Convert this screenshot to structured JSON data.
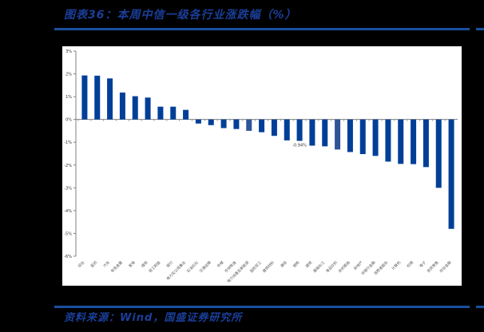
{
  "header": {
    "title": "图表36：本周中信一级各行业涨跌幅（%）"
  },
  "footer": {
    "source": "资料来源：Wind，国盛证券研究所"
  },
  "colors": {
    "bar": "#003f98",
    "bar_highlight": "#2f5597",
    "rule": "#1a4fa0",
    "title": "#1a3f9a"
  },
  "chart_data": {
    "type": "bar",
    "title": "本周中信一级各行业涨跌幅（%）",
    "xlabel": "",
    "ylabel": "",
    "ylim": [
      -6,
      3
    ],
    "yticks": [
      "3%",
      "2%",
      "1%",
      "0%",
      "-1%",
      "-2%",
      "-3%",
      "-4%",
      "-5%",
      "-6%"
    ],
    "grid": false,
    "legend": null,
    "categories": [
      "综合",
      "医药",
      "汽车",
      "有色金属",
      "家电",
      "煤炭",
      "轻工制造",
      "银行",
      "电力及公用事业",
      "石油石化",
      "交通运输",
      "传媒",
      "农林牧渔",
      "电力设备及新能源",
      "国防军工",
      "建筑材料",
      "通信",
      "钢铁",
      "建筑",
      "基础化工",
      "食品饮料",
      "纺织服装",
      "房地产",
      "非银行金融",
      "消费者服务",
      "计算机",
      "机械",
      "电子",
      "商贸零售",
      "综合金融"
    ],
    "values": [
      1.93,
      1.92,
      1.8,
      1.18,
      1.02,
      0.96,
      0.56,
      0.56,
      0.42,
      -0.18,
      -0.25,
      -0.38,
      -0.42,
      -0.5,
      -0.56,
      -0.72,
      -0.92,
      -0.94,
      -1.15,
      -1.18,
      -1.32,
      -1.43,
      -1.52,
      -1.6,
      -1.85,
      -1.95,
      -1.96,
      -2.09,
      -3.0,
      -4.8
    ],
    "highlight_index": [
      13,
      20
    ],
    "annotations": [
      {
        "index": 17,
        "text": "-0.94%"
      }
    ]
  }
}
